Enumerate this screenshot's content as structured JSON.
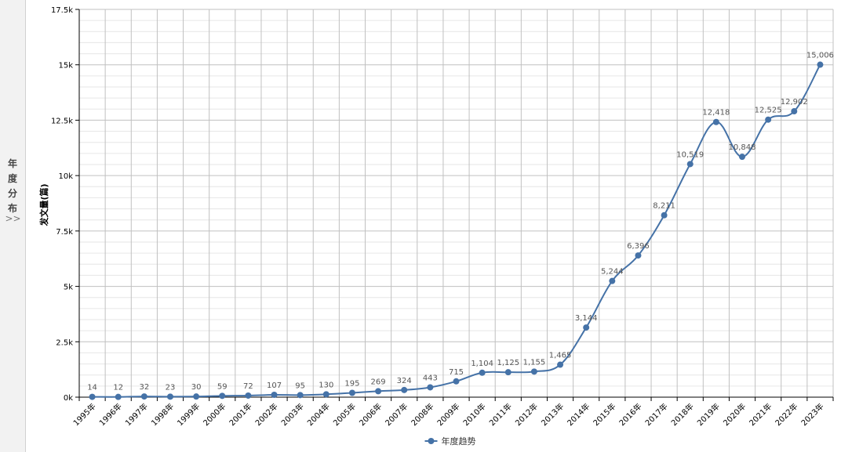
{
  "side_tab": {
    "chars": [
      "年",
      "度",
      "分",
      "布"
    ],
    "chevron": ">>"
  },
  "chart_data": {
    "type": "line",
    "ylabel": "发文量(篇)",
    "ylim": [
      0,
      17500
    ],
    "y_ticks": [
      0,
      2500,
      5000,
      7500,
      10000,
      12500,
      15000,
      17500
    ],
    "y_tick_labels": [
      "0k",
      "2.5k",
      "5k",
      "7.5k",
      "10k",
      "12.5k",
      "15k",
      "17.5k"
    ],
    "categories": [
      "1995年",
      "1996年",
      "1997年",
      "1998年",
      "1999年",
      "2000年",
      "2001年",
      "2002年",
      "2003年",
      "2004年",
      "2005年",
      "2006年",
      "2007年",
      "2008年",
      "2009年",
      "2010年",
      "2011年",
      "2012年",
      "2013年",
      "2014年",
      "2015年",
      "2016年",
      "2017年",
      "2018年",
      "2019年",
      "2020年",
      "2021年",
      "2022年",
      "2023年"
    ],
    "series": [
      {
        "name": "年度趋势",
        "values": [
          14,
          12,
          32,
          23,
          30,
          59,
          72,
          107,
          95,
          130,
          195,
          269,
          324,
          443,
          715,
          1104,
          1125,
          1155,
          1465,
          3144,
          5244,
          6396,
          8211,
          10519,
          12418,
          10848,
          12525,
          12902,
          15006
        ],
        "labels": [
          "14",
          "12",
          "32",
          "23",
          "30",
          "59",
          "72",
          "107",
          "95",
          "130",
          "195",
          "269",
          "324",
          "443",
          "715",
          "1,104",
          "1,125",
          "1,155",
          "1,465",
          "3,144",
          "5,244",
          "6,396",
          "8,211",
          "10,519",
          "12,418",
          "10,848",
          "12,525",
          "12,902",
          "15,006"
        ]
      }
    ],
    "grid": true,
    "legend": "bottom-center",
    "colors": {
      "line": "#4572a7",
      "grid_major": "#c0c0c0",
      "grid_minor": "#e6e6e6",
      "axis": "#000000"
    }
  }
}
